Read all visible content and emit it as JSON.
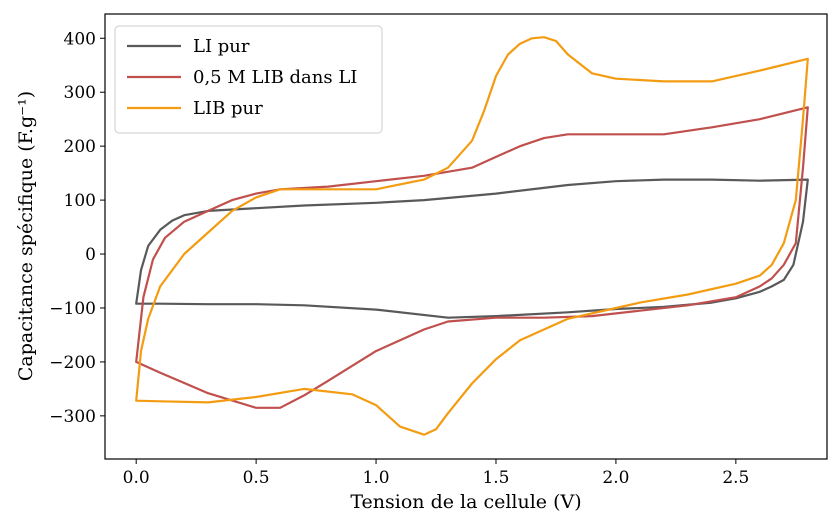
{
  "chart_data": {
    "type": "line",
    "xlabel": "Tension de la cellule (V)",
    "ylabel": "Capacitance spécifique (F.g⁻¹)",
    "xlim": [
      -0.13,
      2.88
    ],
    "ylim": [
      -380,
      445
    ],
    "xticks": [
      0.0,
      0.5,
      1.0,
      1.5,
      2.0,
      2.5
    ],
    "xtick_labels": [
      "0.0",
      "0.5",
      "1.0",
      "1.5",
      "2.0",
      "2.5"
    ],
    "yticks": [
      -300,
      -200,
      -100,
      0,
      100,
      200,
      300,
      400
    ],
    "ytick_labels": [
      "−300",
      "−200",
      "−100",
      "0",
      "100",
      "200",
      "300",
      "400"
    ],
    "grid": false,
    "legend_position": "top-left",
    "series": [
      {
        "name": "LI pur",
        "color": "#595959",
        "x": [
          0.0,
          0.02,
          0.05,
          0.1,
          0.15,
          0.2,
          0.3,
          0.5,
          0.7,
          1.0,
          1.2,
          1.5,
          1.8,
          2.0,
          2.2,
          2.4,
          2.6,
          2.8,
          2.8,
          2.78,
          2.74,
          2.7,
          2.65,
          2.6,
          2.5,
          2.4,
          2.2,
          2.0,
          1.8,
          1.5,
          1.3,
          1.0,
          0.7,
          0.5,
          0.3,
          0.1,
          0.0
        ],
        "y": [
          -92,
          -30,
          15,
          45,
          62,
          72,
          80,
          85,
          90,
          95,
          100,
          112,
          128,
          135,
          138,
          138,
          136,
          138,
          138,
          60,
          -20,
          -48,
          -60,
          -70,
          -82,
          -90,
          -98,
          -102,
          -108,
          -115,
          -118,
          -103,
          -95,
          -93,
          -93,
          -92,
          -92
        ]
      },
      {
        "name": "0,5 M LIB dans LI",
        "color": "#c0504d",
        "x": [
          0.0,
          0.03,
          0.07,
          0.12,
          0.2,
          0.3,
          0.4,
          0.5,
          0.6,
          0.8,
          1.0,
          1.2,
          1.4,
          1.5,
          1.6,
          1.7,
          1.8,
          2.0,
          2.2,
          2.4,
          2.6,
          2.8,
          2.8,
          2.78,
          2.75,
          2.7,
          2.65,
          2.6,
          2.5,
          2.3,
          2.1,
          1.9,
          1.7,
          1.5,
          1.3,
          1.2,
          1.0,
          0.8,
          0.7,
          0.6,
          0.5,
          0.3,
          0.1,
          0.0
        ],
        "y": [
          -200,
          -80,
          -10,
          30,
          60,
          80,
          100,
          112,
          120,
          125,
          135,
          145,
          160,
          180,
          200,
          215,
          222,
          222,
          222,
          235,
          250,
          272,
          272,
          160,
          20,
          -20,
          -45,
          -60,
          -80,
          -95,
          -105,
          -115,
          -118,
          -118,
          -125,
          -140,
          -180,
          -235,
          -262,
          -285,
          -285,
          -258,
          -220,
          -200
        ]
      },
      {
        "name": "LIB pur",
        "color": "#f39c12",
        "x": [
          0.0,
          0.02,
          0.05,
          0.1,
          0.2,
          0.3,
          0.4,
          0.5,
          0.6,
          0.8,
          1.0,
          1.2,
          1.3,
          1.4,
          1.45,
          1.5,
          1.55,
          1.6,
          1.65,
          1.7,
          1.75,
          1.8,
          1.9,
          2.0,
          2.2,
          2.4,
          2.6,
          2.8,
          2.8,
          2.78,
          2.75,
          2.7,
          2.65,
          2.6,
          2.5,
          2.3,
          2.1,
          2.0,
          1.8,
          1.6,
          1.5,
          1.4,
          1.3,
          1.25,
          1.2,
          1.1,
          1.0,
          0.9,
          0.7,
          0.5,
          0.3,
          0.1,
          0.0
        ],
        "y": [
          -272,
          -180,
          -120,
          -60,
          0,
          40,
          80,
          105,
          120,
          120,
          120,
          138,
          160,
          210,
          265,
          330,
          370,
          390,
          400,
          402,
          395,
          370,
          335,
          325,
          320,
          320,
          340,
          362,
          362,
          250,
          100,
          20,
          -20,
          -40,
          -55,
          -75,
          -90,
          -100,
          -120,
          -160,
          -195,
          -240,
          -295,
          -325,
          -335,
          -320,
          -280,
          -260,
          -250,
          -265,
          -275,
          -273,
          -272
        ]
      }
    ]
  }
}
